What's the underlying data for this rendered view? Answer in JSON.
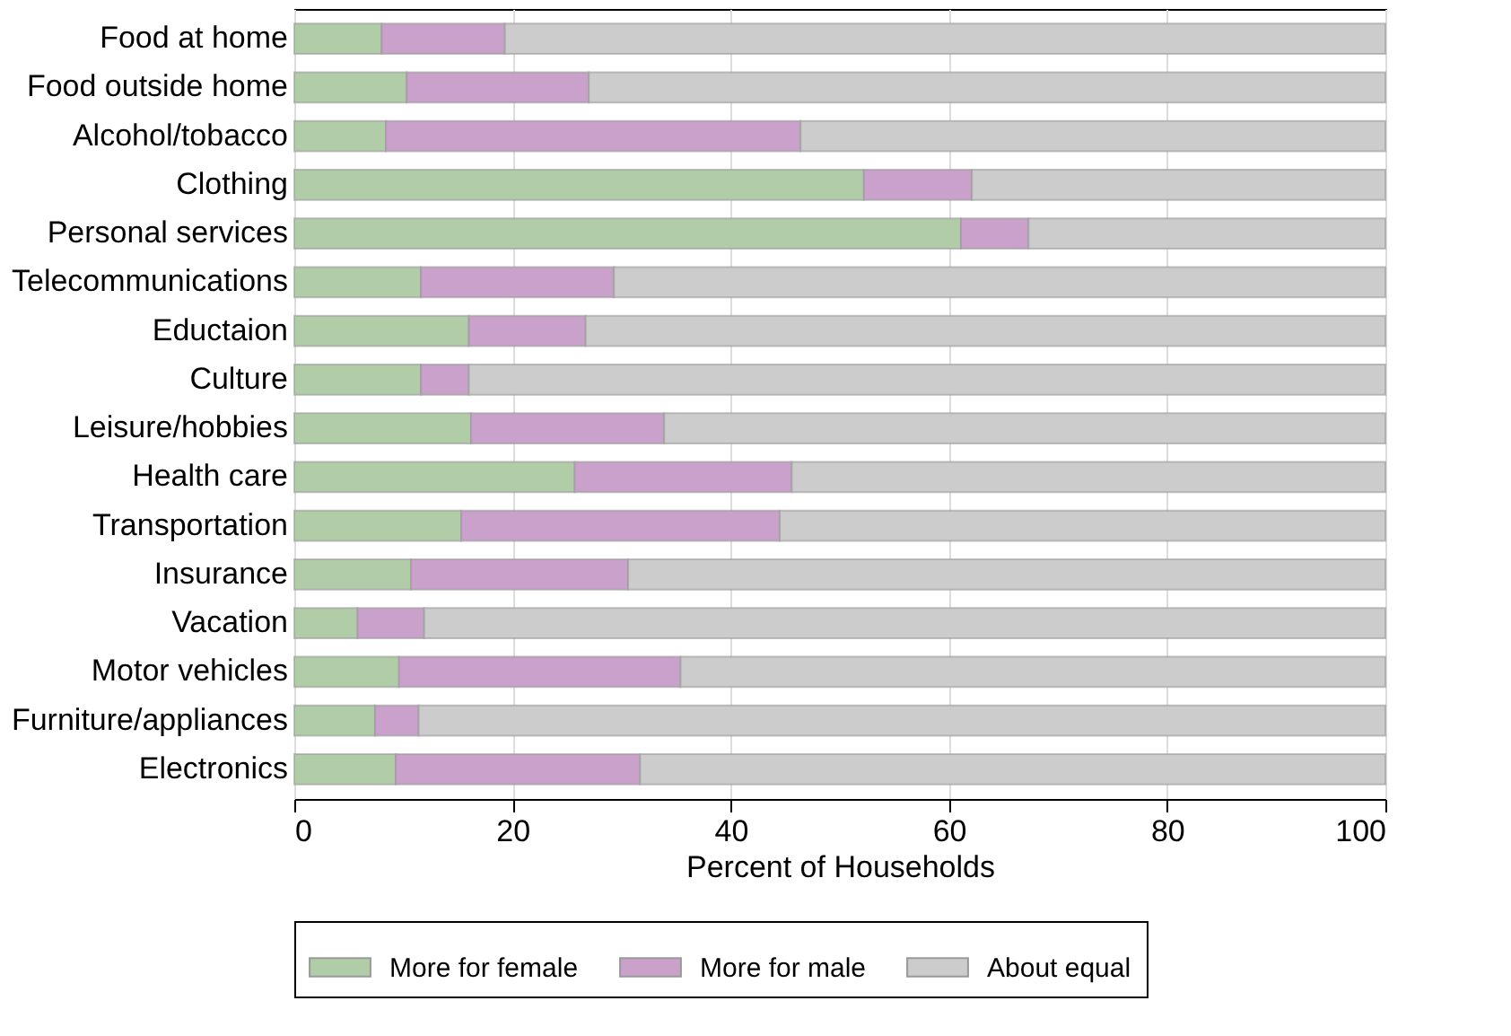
{
  "chart_data": {
    "type": "bar",
    "orientation": "horizontal",
    "stacked": true,
    "xlabel": "Percent of Households",
    "categories": [
      "Food at home",
      "Food outside home",
      "Alcohol/tobacco",
      "Clothing",
      "Personal services",
      "Telecommunications",
      "Eductaion",
      "Culture",
      "Leisure/hobbies",
      "Health care",
      "Transportation",
      "Insurance",
      "Vacation",
      "Motor vehicles",
      "Furniture/appliances",
      "Electronics"
    ],
    "series": [
      {
        "name": "More for female",
        "color": "#b0cda8",
        "values": [
          8.0,
          10.3,
          8.4,
          52.2,
          61.1,
          11.6,
          16.0,
          11.6,
          16.2,
          25.7,
          15.3,
          10.7,
          5.8,
          9.6,
          7.4,
          9.3
        ]
      },
      {
        "name": "More for male",
        "color": "#c9a1cb",
        "values": [
          11.3,
          16.7,
          38.0,
          9.9,
          6.2,
          17.7,
          10.7,
          4.4,
          17.7,
          19.9,
          29.2,
          19.9,
          6.1,
          25.8,
          4.0,
          22.4
        ]
      },
      {
        "name": "About equal",
        "color": "#cccccc",
        "values": [
          80.7,
          73.0,
          53.6,
          37.9,
          32.7,
          70.7,
          73.3,
          84.0,
          66.1,
          54.4,
          55.5,
          69.4,
          88.1,
          64.6,
          88.6,
          68.3
        ]
      }
    ],
    "xlim": [
      0,
      100
    ],
    "xticks": [
      0,
      20,
      40,
      60,
      80,
      100
    ],
    "grid": "x",
    "legend": "bottom"
  }
}
